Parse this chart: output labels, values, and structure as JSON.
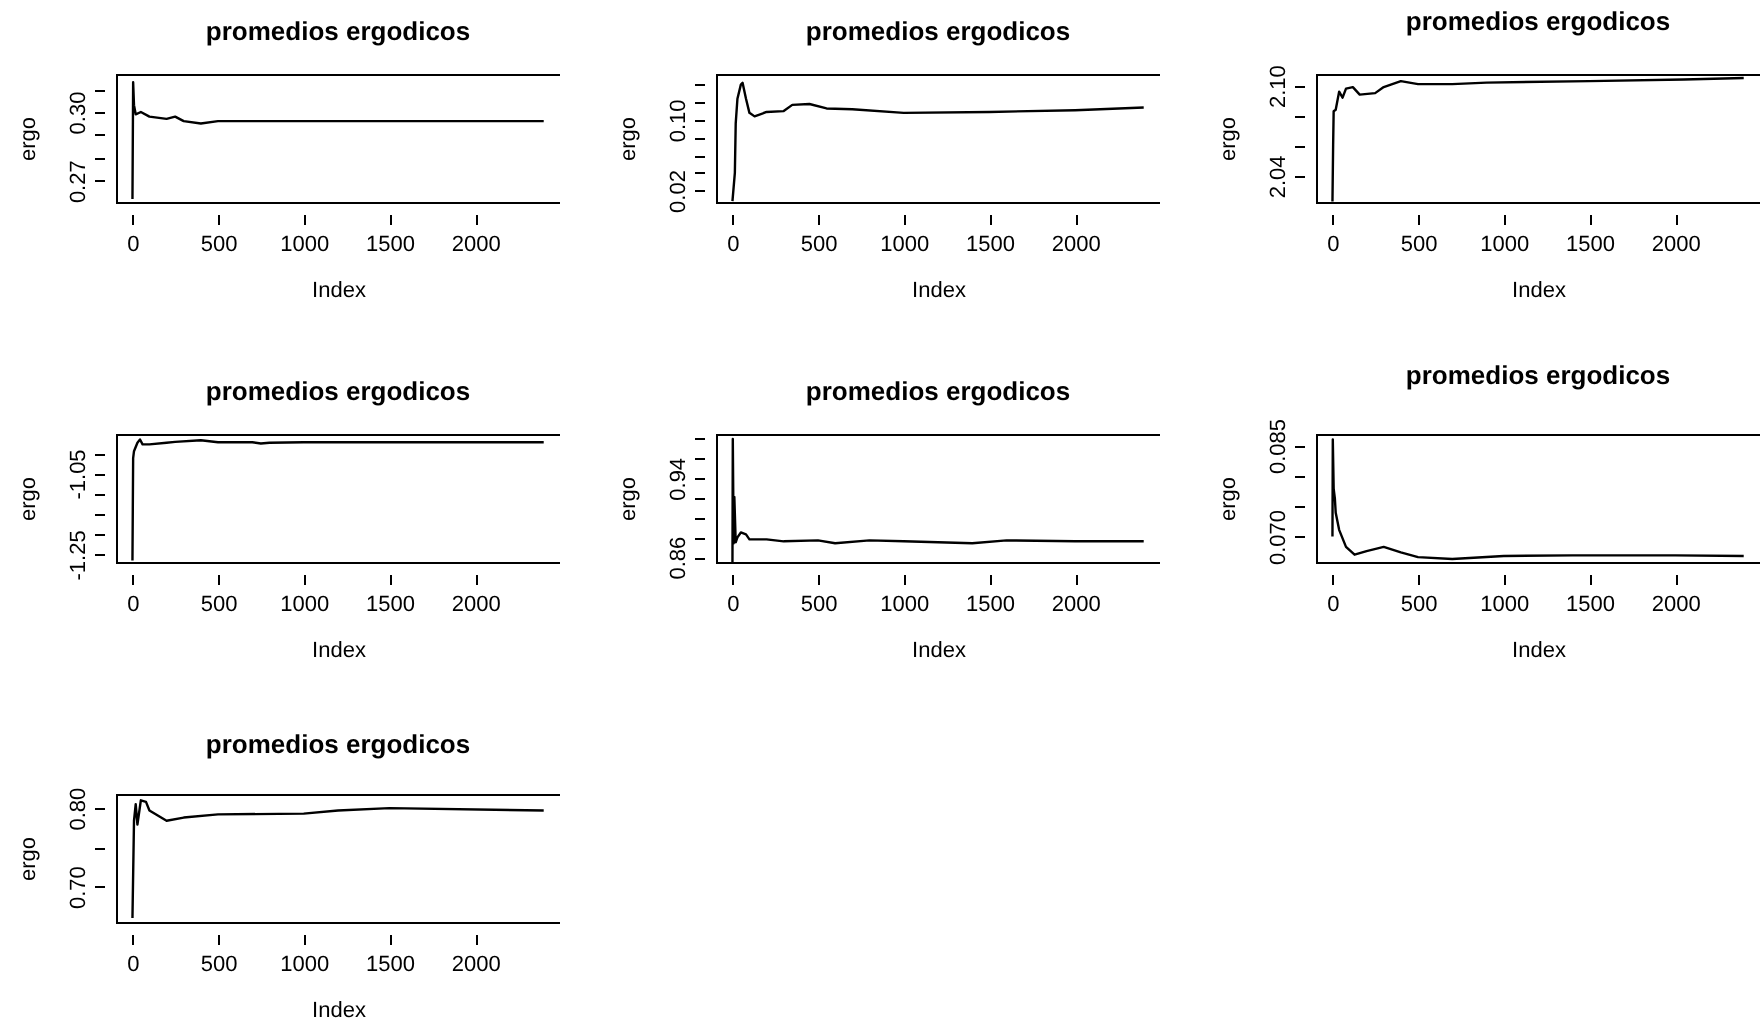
{
  "chart_data": [
    {
      "type": "line",
      "title": "promedios ergodicos",
      "xlabel": "Index",
      "ylabel": "ergo",
      "xlim": [
        -95,
        2495
      ],
      "ylim": [
        0.2607,
        0.3166
      ],
      "xticks": [
        0,
        500,
        1000,
        1500,
        2000
      ],
      "yticks": [
        {
          "value": 0.27,
          "label": "0.27"
        },
        {
          "value": 0.28,
          "label": null
        },
        {
          "value": 0.29,
          "label": null
        },
        {
          "value": 0.3,
          "label": "0.30"
        },
        {
          "value": 0.31,
          "label": null
        }
      ],
      "series": [
        {
          "color": "#000000",
          "x": [
            1,
            5,
            10,
            20,
            50,
            100,
            200,
            250,
            300,
            400,
            500,
            600,
            1000,
            1500,
            2000,
            2400
          ],
          "values": [
            0.262,
            0.313,
            0.303,
            0.299,
            0.3,
            0.298,
            0.297,
            0.298,
            0.296,
            0.295,
            0.296,
            0.296,
            0.296,
            0.296,
            0.296,
            0.296
          ]
        }
      ]
    },
    {
      "type": "line",
      "title": "promedios ergodicos",
      "xlabel": "Index",
      "ylabel": "ergo",
      "xlim": [
        -95,
        2495
      ],
      "ylim": [
        0.007,
        0.152
      ],
      "xticks": [
        0,
        500,
        1000,
        1500,
        2000
      ],
      "yticks": [
        {
          "value": 0.02,
          "label": "0.02"
        },
        {
          "value": 0.04,
          "label": null
        },
        {
          "value": 0.06,
          "label": null
        },
        {
          "value": 0.08,
          "label": null
        },
        {
          "value": 0.1,
          "label": "0.10"
        },
        {
          "value": 0.12,
          "label": null
        },
        {
          "value": 0.14,
          "label": null
        }
      ],
      "series": [
        {
          "color": "#000000",
          "x": [
            1,
            15,
            20,
            30,
            50,
            60,
            80,
            100,
            130,
            200,
            300,
            350,
            450,
            550,
            700,
            1000,
            1500,
            2000,
            2400
          ],
          "values": [
            0.008,
            0.04,
            0.096,
            0.124,
            0.14,
            0.142,
            0.124,
            0.108,
            0.104,
            0.109,
            0.11,
            0.117,
            0.118,
            0.113,
            0.112,
            0.108,
            0.109,
            0.111,
            0.114
          ]
        }
      ]
    },
    {
      "type": "line",
      "title": "promedios ergodicos",
      "xlabel": "Index",
      "ylabel": "ergo",
      "xlim": [
        -95,
        2495
      ],
      "ylim": [
        2.0227,
        2.1077
      ],
      "xticks": [
        0,
        500,
        1000,
        1500,
        2000
      ],
      "yticks": [
        {
          "value": 2.04,
          "label": "2.04"
        },
        {
          "value": 2.06,
          "label": null
        },
        {
          "value": 2.08,
          "label": null
        },
        {
          "value": 2.1,
          "label": "2.10"
        }
      ],
      "series": [
        {
          "color": "#000000",
          "x": [
            1,
            5,
            8,
            20,
            40,
            60,
            80,
            120,
            160,
            250,
            300,
            400,
            500,
            700,
            900,
            1500,
            2050,
            2400
          ],
          "values": [
            2.023,
            2.061,
            2.083,
            2.084,
            2.096,
            2.092,
            2.098,
            2.099,
            2.094,
            2.095,
            2.099,
            2.103,
            2.101,
            2.101,
            2.102,
            2.103,
            2.104,
            2.105
          ]
        }
      ]
    },
    {
      "type": "line",
      "title": "promedios ergodicos",
      "xlabel": "Index",
      "ylabel": "ergo",
      "xlim": [
        -95,
        2495
      ],
      "ylim": [
        -1.2686,
        -0.9525
      ],
      "xticks": [
        0,
        500,
        1000,
        1500,
        2000
      ],
      "yticks": [
        {
          "value": -1.25,
          "label": "-1.25"
        },
        {
          "value": -1.2,
          "label": null
        },
        {
          "value": -1.15,
          "label": null
        },
        {
          "value": -1.1,
          "label": null
        },
        {
          "value": -1.05,
          "label": "-1.05"
        },
        {
          "value": -1.0,
          "label": null
        }
      ],
      "series": [
        {
          "color": "#000000",
          "x": [
            1,
            5,
            10,
            30,
            45,
            60,
            100,
            200,
            250,
            400,
            500,
            700,
            750,
            800,
            1000,
            2400
          ],
          "values": [
            -1.265,
            -1.012,
            -0.995,
            -0.974,
            -0.966,
            -0.978,
            -0.978,
            -0.974,
            -0.972,
            -0.968,
            -0.973,
            -0.973,
            -0.976,
            -0.974,
            -0.973,
            -0.973
          ]
        }
      ]
    },
    {
      "type": "line",
      "title": "promedios ergodicos",
      "xlabel": "Index",
      "ylabel": "ergo",
      "xlim": [
        -95,
        2495
      ],
      "ylim": [
        0.855,
        0.985
      ],
      "xticks": [
        0,
        500,
        1000,
        1500,
        2000
      ],
      "yticks": [
        {
          "value": 0.86,
          "label": "0.86"
        },
        {
          "value": 0.88,
          "label": null
        },
        {
          "value": 0.9,
          "label": null
        },
        {
          "value": 0.92,
          "label": null
        },
        {
          "value": 0.94,
          "label": "0.94"
        },
        {
          "value": 0.96,
          "label": null
        },
        {
          "value": 0.98,
          "label": null
        }
      ],
      "series": [
        {
          "color": "#000000",
          "x": [
            1,
            3,
            8,
            12,
            20,
            30,
            50,
            80,
            100,
            200,
            300,
            500,
            600,
            800,
            1000,
            1400,
            1600,
            2000,
            2400
          ],
          "values": [
            0.855,
            0.98,
            0.874,
            0.921,
            0.875,
            0.88,
            0.885,
            0.883,
            0.878,
            0.878,
            0.876,
            0.877,
            0.874,
            0.877,
            0.876,
            0.874,
            0.877,
            0.876,
            0.876
          ]
        }
      ]
    },
    {
      "type": "line",
      "title": "promedios ergodicos",
      "xlabel": "Index",
      "ylabel": "ergo",
      "xlim": [
        -95,
        2495
      ],
      "ylim": [
        0.0658,
        0.0869
      ],
      "xticks": [
        0,
        500,
        1000,
        1500,
        2000
      ],
      "yticks": [
        {
          "value": 0.07,
          "label": "0.070"
        },
        {
          "value": 0.075,
          "label": null
        },
        {
          "value": 0.08,
          "label": null
        },
        {
          "value": 0.085,
          "label": "0.085"
        }
      ],
      "series": [
        {
          "color": "#000000",
          "x": [
            1,
            3,
            8,
            15,
            20,
            40,
            80,
            130,
            200,
            300,
            400,
            500,
            700,
            1000,
            1400,
            2000,
            2400
          ],
          "values": [
            0.07,
            0.086,
            0.0779,
            0.0763,
            0.0739,
            0.0711,
            0.0683,
            0.067,
            0.0676,
            0.0683,
            0.0674,
            0.0666,
            0.0663,
            0.0668,
            0.0669,
            0.0669,
            0.0668
          ]
        }
      ]
    },
    {
      "type": "line",
      "title": "promedios ergodicos",
      "xlabel": "Index",
      "ylabel": "ergo",
      "xlim": [
        -95,
        2495
      ],
      "ylim": [
        0.655,
        0.818
      ],
      "xticks": [
        0,
        500,
        1000,
        1500,
        2000
      ],
      "yticks": [
        {
          "value": 0.7,
          "label": "0.70"
        },
        {
          "value": 0.75,
          "label": null
        },
        {
          "value": 0.8,
          "label": "0.80"
        }
      ],
      "series": [
        {
          "color": "#000000",
          "x": [
            1,
            10,
            20,
            30,
            50,
            80,
            100,
            200,
            300,
            500,
            1000,
            1200,
            1500,
            2400
          ],
          "values": [
            0.66,
            0.784,
            0.805,
            0.779,
            0.81,
            0.808,
            0.797,
            0.784,
            0.788,
            0.792,
            0.793,
            0.797,
            0.8,
            0.797
          ]
        }
      ]
    }
  ]
}
